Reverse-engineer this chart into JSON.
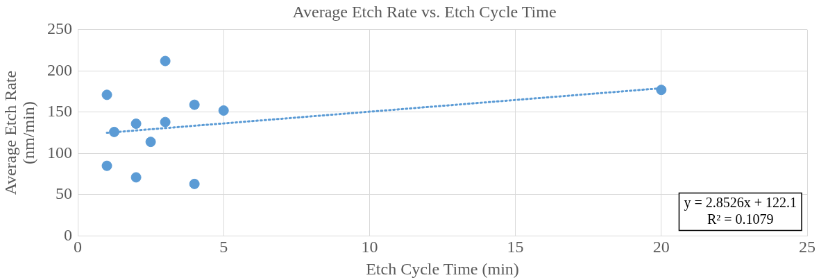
{
  "chart_data": {
    "type": "scatter",
    "title": "Average Etch Rate vs. Etch Cycle Time",
    "xlabel": "Etch Cycle Time (min)",
    "ylabel": "Average Etch Rate (nm/min)",
    "xlim": [
      0,
      25
    ],
    "xticks": [
      0,
      5,
      10,
      15,
      20,
      25
    ],
    "ylim": [
      0,
      250
    ],
    "yticks": [
      0,
      50,
      100,
      150,
      200,
      250
    ],
    "grid": true,
    "legend": false,
    "marker": "circle",
    "series": [
      {
        "type": "scatter",
        "color": "#5b9bd5",
        "x": [
          1,
          1,
          1.25,
          2,
          2,
          2.5,
          3,
          3,
          4,
          4,
          5,
          20
        ],
        "values": [
          171,
          85,
          126,
          136,
          71,
          114,
          212,
          138,
          159,
          63,
          152,
          177
        ]
      },
      {
        "type": "line",
        "color": "#5b9bd5",
        "line_style": "dotted",
        "marker": "none",
        "x": [
          1,
          20
        ],
        "values": [
          125,
          179
        ]
      }
    ],
    "annotations": [
      "y = 2.8526x + 122.1",
      "R² = 0.1079"
    ]
  }
}
